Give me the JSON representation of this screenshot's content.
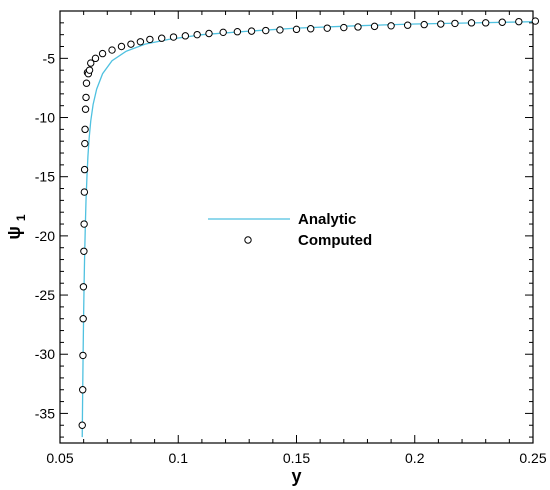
{
  "chart_data": {
    "type": "line",
    "xlabel": "y",
    "ylabel": "ψ",
    "ylabel_subscript": "1",
    "xlim": [
      0.05,
      0.25
    ],
    "ylim": [
      -37.5,
      -1
    ],
    "xticks": [
      0.05,
      0.1,
      0.15,
      0.2,
      0.25
    ],
    "xtick_labels": [
      "0.05",
      "0.1",
      "0.15",
      "0.2",
      "0.25"
    ],
    "yticks": [
      -35,
      -30,
      -25,
      -20,
      -15,
      -10,
      -5
    ],
    "ytick_labels": [
      "-35",
      "-30",
      "-25",
      "-20",
      "-15",
      "-10",
      "-5"
    ],
    "legend_position": "center",
    "colors": {
      "analytic": "#4fc1e0",
      "computed": "#000000"
    },
    "series": [
      {
        "name": "Analytic",
        "style": "line",
        "x": [
          0.0594,
          0.0596,
          0.0598,
          0.06,
          0.0602,
          0.0604,
          0.0607,
          0.061,
          0.0614,
          0.0618,
          0.0623,
          0.063,
          0.064,
          0.0655,
          0.068,
          0.072,
          0.078,
          0.086,
          0.096,
          0.11,
          0.13,
          0.15,
          0.175,
          0.2,
          0.225,
          0.252
        ],
        "y": [
          -37.0,
          -33.0,
          -29.5,
          -26.5,
          -24.0,
          -21.8,
          -19.2,
          -17.0,
          -15.0,
          -13.3,
          -11.8,
          -10.3,
          -8.9,
          -7.6,
          -6.3,
          -5.2,
          -4.4,
          -3.8,
          -3.4,
          -3.0,
          -2.7,
          -2.45,
          -2.25,
          -2.1,
          -2.0,
          -1.9
        ]
      },
      {
        "name": "Computed",
        "style": "markers",
        "x": [
          0.0594,
          0.0596,
          0.0597,
          0.0598,
          0.0599,
          0.0601,
          0.0602,
          0.0603,
          0.0604,
          0.0605,
          0.0606,
          0.0608,
          0.061,
          0.0612,
          0.0616,
          0.062,
          0.0625,
          0.063,
          0.065,
          0.068,
          0.072,
          0.076,
          0.08,
          0.084,
          0.088,
          0.093,
          0.098,
          0.103,
          0.108,
          0.113,
          0.119,
          0.125,
          0.131,
          0.137,
          0.143,
          0.15,
          0.156,
          0.163,
          0.17,
          0.176,
          0.183,
          0.19,
          0.197,
          0.204,
          0.211,
          0.217,
          0.224,
          0.23,
          0.237,
          0.244,
          0.251
        ],
        "y": [
          -36.0,
          -33.0,
          -30.1,
          -27.0,
          -24.3,
          -21.3,
          -19.0,
          -16.3,
          -14.4,
          -12.2,
          -11.0,
          -9.3,
          -8.3,
          -7.1,
          -6.2,
          -6.3,
          -6.0,
          -5.4,
          -5.0,
          -4.6,
          -4.3,
          -4.0,
          -3.8,
          -3.6,
          -3.4,
          -3.3,
          -3.2,
          -3.1,
          -3.0,
          -2.9,
          -2.8,
          -2.75,
          -2.7,
          -2.65,
          -2.6,
          -2.55,
          -2.5,
          -2.45,
          -2.4,
          -2.35,
          -2.3,
          -2.25,
          -2.2,
          -2.15,
          -2.1,
          -2.05,
          -2.0,
          -2.0,
          -1.95,
          -1.9,
          -1.85
        ]
      }
    ]
  }
}
